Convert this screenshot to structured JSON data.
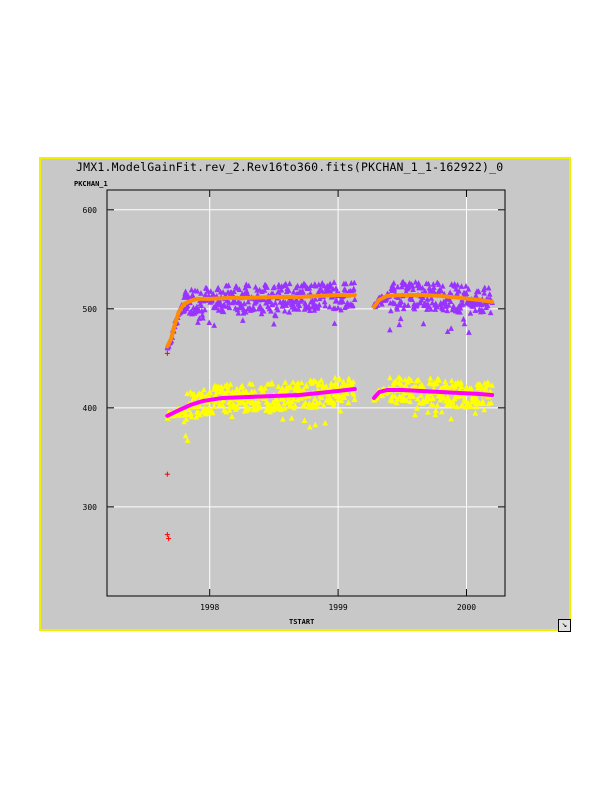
{
  "window": {
    "title": "JMX1.ModelGainFit.rev_2.Rev16to360.fits(PKCHAN_1_1-162922)_0",
    "resize_icon": "resize-corner-icon"
  },
  "colors": {
    "frame_bg": "#c8c8c8",
    "frame_border": "#f0f000",
    "plot_bg": "#c8c8c8",
    "upper_data": "#9933ff",
    "upper_fit": "#ff8c00",
    "lower_data": "#ffff00",
    "lower_fit": "#ff00ff",
    "outlier": "#ff0000"
  },
  "chart_data": {
    "type": "scatter",
    "title": "JMX1.ModelGainFit.rev_2.Rev16to360.fits(PKCHAN_1_1-162922)_0",
    "xlabel": "TSTART",
    "ylabel": "PKCHAN_1",
    "xlim": [
      1997.2,
      2000.3
    ],
    "ylim": [
      210,
      620
    ],
    "xticks": [
      1998,
      1999,
      2000
    ],
    "xtick_labels": [
      "1998",
      "1999",
      "2000"
    ],
    "yticks": [
      300,
      400,
      500,
      600
    ],
    "ytick_labels": [
      "300",
      "400",
      "500",
      "600"
    ],
    "grid": true,
    "series": [
      {
        "marker": "triangle",
        "color": "#9933ff",
        "segments": [
          {
            "x": [
              1997.67,
              1997.7,
              1997.73,
              1997.76,
              1997.8,
              1997.85,
              1997.9,
              1998.0,
              1998.15,
              1998.3,
              1998.5,
              1998.7,
              1998.85,
              1999.0,
              1999.13
            ],
            "y": [
              462,
              470,
              485,
              497,
              505,
              508,
              510,
              510,
              511,
              511,
              512,
              512,
              513,
              514,
              514
            ]
          },
          {
            "x": [
              1999.28,
              1999.32,
              1999.38,
              1999.5,
              1999.65,
              1999.8,
              1999.95,
              2000.1,
              2000.2
            ],
            "y": [
              502,
              509,
              513,
              514,
              514,
              513,
              511,
              509,
              507
            ]
          }
        ],
        "scatter": 14
      },
      {
        "marker": "line",
        "color": "#ff8c00",
        "segments": [
          {
            "x": [
              1997.67,
              1997.7,
              1997.73,
              1997.76,
              1997.8,
              1997.85,
              1997.9,
              1998.0,
              1998.15,
              1998.3,
              1998.5,
              1998.7,
              1998.85,
              1999.0,
              1999.13
            ],
            "y": [
              462,
              470,
              485,
              497,
              505,
              508,
              510,
              510,
              511,
              511,
              512,
              512,
              513,
              514,
              514
            ]
          },
          {
            "x": [
              1999.28,
              1999.32,
              1999.38,
              1999.5,
              1999.65,
              1999.8,
              1999.95,
              2000.1,
              2000.2
            ],
            "y": [
              502,
              509,
              513,
              514,
              514,
              513,
              511,
              509,
              507
            ]
          }
        ]
      },
      {
        "marker": "triangle",
        "color": "#ffff00",
        "segments": [
          {
            "x": [
              1997.67,
              1997.75,
              1997.85,
              1997.95,
              1998.1,
              1998.3,
              1998.5,
              1998.7,
              1998.85,
              1999.0,
              1999.13
            ],
            "y": [
              392,
              397,
              403,
              407,
              410,
              411,
              412,
              413,
              415,
              417,
              419
            ]
          },
          {
            "x": [
              1999.28,
              1999.32,
              1999.38,
              1999.5,
              1999.65,
              1999.8,
              1999.95,
              2000.1,
              2000.2
            ],
            "y": [
              410,
              416,
              418,
              418,
              417,
              416,
              415,
              414,
              413
            ]
          }
        ],
        "scatter": 14
      },
      {
        "marker": "line",
        "color": "#ff00ff",
        "segments": [
          {
            "x": [
              1997.67,
              1997.75,
              1997.85,
              1997.95,
              1998.1,
              1998.3,
              1998.5,
              1998.7,
              1998.85,
              1999.0,
              1999.13
            ],
            "y": [
              392,
              397,
              403,
              407,
              410,
              411,
              412,
              413,
              415,
              417,
              419
            ]
          },
          {
            "x": [
              1999.28,
              1999.32,
              1999.38,
              1999.5,
              1999.65,
              1999.8,
              1999.95,
              2000.1,
              2000.2
            ],
            "y": [
              410,
              416,
              418,
              418,
              417,
              416,
              415,
              414,
              413
            ]
          }
        ]
      },
      {
        "marker": "cross",
        "color": "#ff0000",
        "x": [
          1997.67,
          1997.67,
          1997.68,
          1997.67
        ],
        "y": [
          333,
          272,
          268,
          455
        ]
      }
    ]
  }
}
